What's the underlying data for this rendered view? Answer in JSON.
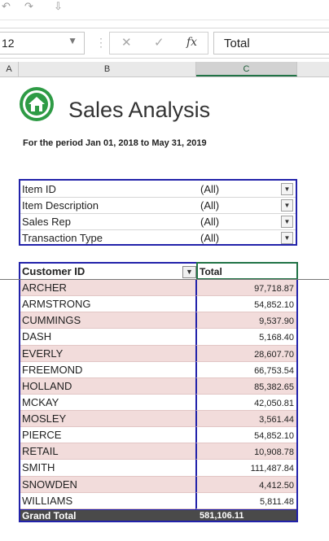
{
  "quick_access": {
    "undo_glyph": "↶",
    "redo_glyph": "↷",
    "more_glyph": "⇩"
  },
  "formula_bar": {
    "name_box": "12",
    "cancel_glyph": "✕",
    "enter_glyph": "✓",
    "fx_label": "fx",
    "content": "Total"
  },
  "columns": [
    "A",
    "B",
    "C"
  ],
  "report": {
    "title": "Sales Analysis",
    "period": "For the period Jan 01, 2018 to May 31, 2019"
  },
  "filters": [
    {
      "label": "Item ID",
      "value": "(All)"
    },
    {
      "label": "Item Description",
      "value": "(All)"
    },
    {
      "label": "Sales Rep",
      "value": "(All)"
    },
    {
      "label": "Transaction Type",
      "value": "(All)"
    }
  ],
  "pivot": {
    "header_row": "Customer ID",
    "header_value": "Total",
    "rows": [
      {
        "customer": "ARCHER",
        "total": "97,718.87"
      },
      {
        "customer": "ARMSTRONG",
        "total": "54,852.10"
      },
      {
        "customer": "CUMMINGS",
        "total": "9,537.90"
      },
      {
        "customer": "DASH",
        "total": "5,168.40"
      },
      {
        "customer": "EVERLY",
        "total": "28,607.70"
      },
      {
        "customer": "FREEMOND",
        "total": "66,753.54"
      },
      {
        "customer": "HOLLAND",
        "total": "85,382.65"
      },
      {
        "customer": "MCKAY",
        "total": "42,050.81"
      },
      {
        "customer": "MOSLEY",
        "total": "3,561.44"
      },
      {
        "customer": "PIERCE",
        "total": "54,852.10"
      },
      {
        "customer": "RETAIL",
        "total": "10,908.78"
      },
      {
        "customer": "SMITH",
        "total": "111,487.84"
      },
      {
        "customer": "SNOWDEN",
        "total": "4,412.50"
      },
      {
        "customer": "WILLIAMS",
        "total": "5,811.48"
      }
    ],
    "grand_total_label": "Grand Total",
    "grand_total_value": "581,106.11"
  },
  "colors": {
    "accent_green": "#217346",
    "logo_green": "#2e9b45",
    "band_pink": "#f2dcdb",
    "border_blue": "#2222aa",
    "total_bar": "#4a4a4a"
  }
}
